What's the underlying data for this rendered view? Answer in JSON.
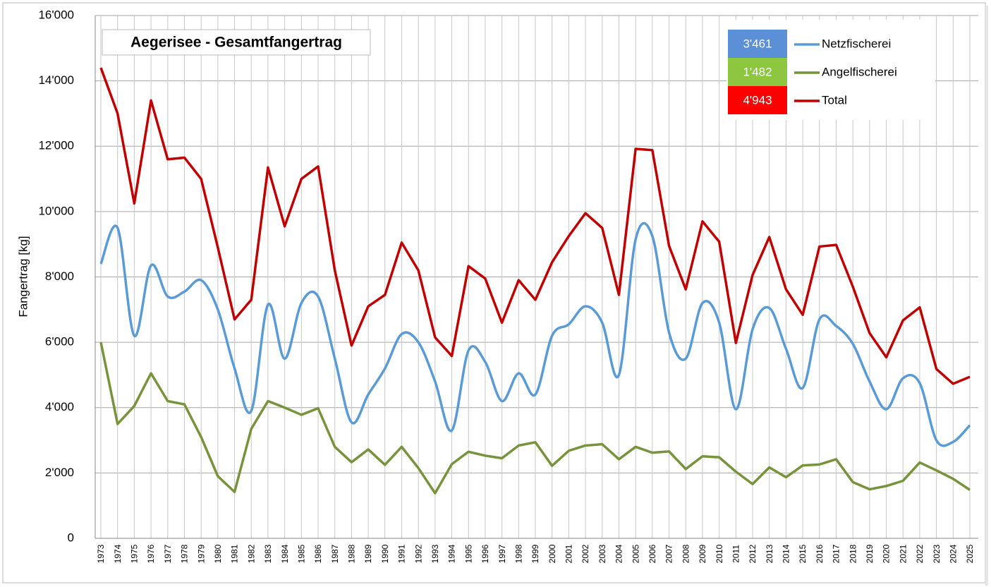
{
  "chart_data": {
    "type": "line",
    "title": "Aegerisee - Gesamtfangertrag",
    "y_label": "Fangertrag [kg]",
    "categories": [
      "1973",
      "1974",
      "1975",
      "1976",
      "1977",
      "1978",
      "1979",
      "1980",
      "1981",
      "1982",
      "1983",
      "1984",
      "1985",
      "1986",
      "1987",
      "1988",
      "1989",
      "1990",
      "1991",
      "1992",
      "1993",
      "1994",
      "1995",
      "1996",
      "1997",
      "1998",
      "1999",
      "2000",
      "2001",
      "2002",
      "2003",
      "2004",
      "2005",
      "2006",
      "2007",
      "2008",
      "2009",
      "2010",
      "2011",
      "2012",
      "2013",
      "2014",
      "2015",
      "2016",
      "2017",
      "2018",
      "2019",
      "2020",
      "2021",
      "2022",
      "2023",
      "2024",
      "2025"
    ],
    "series": [
      {
        "name": "Netzfischerei",
        "color": "#5b9bd5",
        "smooth": true,
        "last_label": "3'461",
        "label_color": "#5b8fd6",
        "values": [
          8400,
          9500,
          6200,
          8350,
          7400,
          7550,
          7900,
          7000,
          5200,
          3900,
          7150,
          5500,
          7200,
          7400,
          5500,
          3550,
          4400,
          5200,
          6250,
          6000,
          4800,
          3300,
          5750,
          5400,
          4200,
          5050,
          4400,
          6200,
          6550,
          7100,
          6600,
          5000,
          9150,
          9250,
          6300,
          5500,
          7200,
          6600,
          3950,
          6400,
          7050,
          5800,
          4600,
          6700,
          6500,
          5950,
          4800,
          3950,
          4900,
          4750,
          3000,
          2950,
          3461
        ]
      },
      {
        "name": "Angelfischerei",
        "color": "#77933c",
        "smooth": false,
        "last_label": "1'482",
        "label_color": "#8dc63f",
        "values": [
          6000,
          3500,
          4050,
          5050,
          4200,
          4100,
          3100,
          1900,
          1420,
          3350,
          4200,
          4000,
          3780,
          3980,
          2800,
          2330,
          2720,
          2250,
          2800,
          2150,
          1380,
          2270,
          2650,
          2530,
          2450,
          2840,
          2940,
          2220,
          2680,
          2840,
          2880,
          2420,
          2800,
          2620,
          2660,
          2120,
          2510,
          2480,
          2040,
          1660,
          2170,
          1870,
          2230,
          2260,
          2420,
          1720,
          1500,
          1600,
          1760,
          2320,
          2080,
          1820,
          1482
        ]
      },
      {
        "name": "Total",
        "color": "#c00000",
        "smooth": false,
        "last_label": "4'943",
        "label_color": "#ff0000",
        "values": [
          14400,
          13000,
          10250,
          13400,
          11600,
          11650,
          11000,
          8900,
          6700,
          7300,
          11350,
          9550,
          11000,
          11380,
          8200,
          5900,
          7100,
          7450,
          9050,
          8200,
          6150,
          5580,
          8330,
          7950,
          6600,
          7900,
          7300,
          8450,
          9250,
          9950,
          9500,
          7450,
          11920,
          11880,
          8950,
          7620,
          9700,
          9080,
          5980,
          8060,
          9220,
          7620,
          6840,
          8930,
          8980,
          7700,
          6280,
          5540,
          6670,
          7070,
          5180,
          4730,
          4943
        ]
      }
    ],
    "ylim": [
      0,
      16000
    ],
    "yticks": [
      0,
      {
        "value": 2000,
        "label": "2'000"
      },
      {
        "value": 4000,
        "label": "4'000"
      },
      {
        "value": 6000,
        "label": "6'000"
      },
      {
        "value": 8000,
        "label": "8'000"
      },
      {
        "value": 10000,
        "label": "10'000"
      },
      {
        "value": 12000,
        "label": "12'000"
      },
      {
        "value": 14000,
        "label": "14'000"
      },
      {
        "value": 16000,
        "label": "16'000"
      }
    ],
    "grid": true
  }
}
